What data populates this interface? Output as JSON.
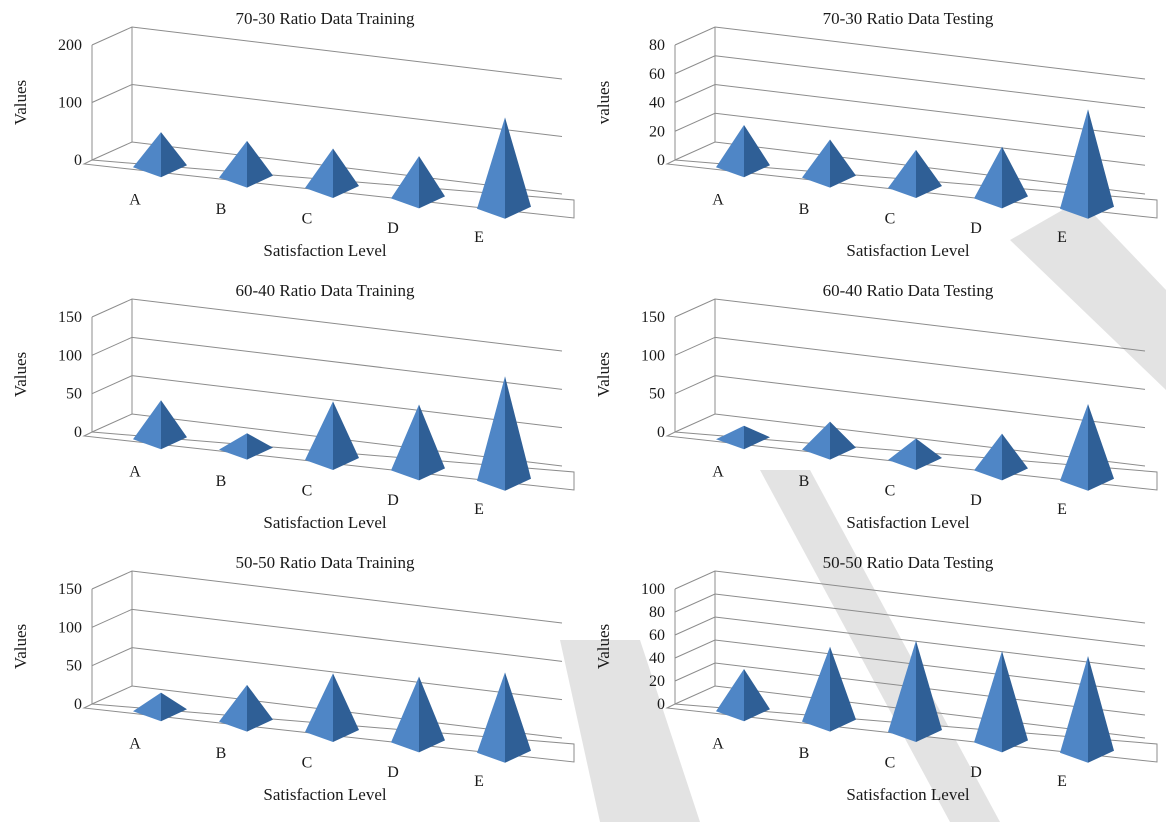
{
  "colors": {
    "pyramid_front": "#4f86c6",
    "pyramid_side": "#2f5f96",
    "pyramid_light": "#6b9bd6",
    "grid": "#8c8c8c",
    "watermark": "#d9d9d9"
  },
  "chart_data": [
    {
      "type": "bar",
      "style": "3d-pyramid",
      "title": "70-30 Ratio Data Training",
      "xlabel": "Satisfaction Level",
      "ylabel": "Values",
      "categories": [
        "A",
        "B",
        "C",
        "D",
        "E"
      ],
      "values": [
        57,
        60,
        65,
        70,
        160
      ],
      "ylim": [
        0,
        200
      ],
      "yticks": [
        "0",
        "100",
        "200"
      ],
      "grid": true
    },
    {
      "type": "bar",
      "style": "3d-pyramid",
      "title": "70-30 Ratio Data Testing",
      "xlabel": "Satisfaction Level",
      "ylabel": "values",
      "categories": [
        "A",
        "B",
        "C",
        "D",
        "E"
      ],
      "values": [
        28,
        25,
        25,
        35,
        70
      ],
      "ylim": [
        0,
        80
      ],
      "yticks": [
        "0",
        "20",
        "40",
        "60",
        "80"
      ],
      "grid": true
    },
    {
      "type": "bar",
      "style": "3d-pyramid",
      "title": "60-40 Ratio Data Training",
      "xlabel": "Satisfaction Level",
      "ylabel": "Values",
      "categories": [
        "A",
        "B",
        "C",
        "D",
        "E"
      ],
      "values": [
        48,
        17,
        75,
        85,
        138
      ],
      "ylim": [
        0,
        150
      ],
      "yticks": [
        "0",
        "50",
        "100",
        "150"
      ],
      "grid": true
    },
    {
      "type": "bar",
      "style": "3d-pyramid",
      "title": "60-40 Ratio Data Testing",
      "xlabel": "Satisfaction Level",
      "ylabel": "Values",
      "categories": [
        "A",
        "B",
        "C",
        "D",
        "E"
      ],
      "values": [
        13,
        33,
        24,
        45,
        100
      ],
      "ylim": [
        0,
        150
      ],
      "yticks": [
        "0",
        "50",
        "100",
        "150"
      ],
      "grid": true
    },
    {
      "type": "bar",
      "style": "3d-pyramid",
      "title": "50-50 Ratio Data Training",
      "xlabel": "Satisfaction Level",
      "ylabel": "Values",
      "categories": [
        "A",
        "B",
        "C",
        "D",
        "E"
      ],
      "values": [
        20,
        45,
        75,
        85,
        105
      ],
      "ylim": [
        0,
        150
      ],
      "yticks": [
        "0",
        "50",
        "100",
        "150"
      ],
      "grid": true
    },
    {
      "type": "bar",
      "style": "3d-pyramid",
      "title": "50-50 Ratio Data Testing",
      "xlabel": "Satisfaction Level",
      "ylabel": "Values",
      "categories": [
        "A",
        "B",
        "C",
        "D",
        "E"
      ],
      "values": [
        35,
        65,
        80,
        80,
        85
      ],
      "ylim": [
        0,
        100
      ],
      "yticks": [
        "0",
        "20",
        "40",
        "60",
        "80",
        "100"
      ],
      "grid": true
    }
  ]
}
